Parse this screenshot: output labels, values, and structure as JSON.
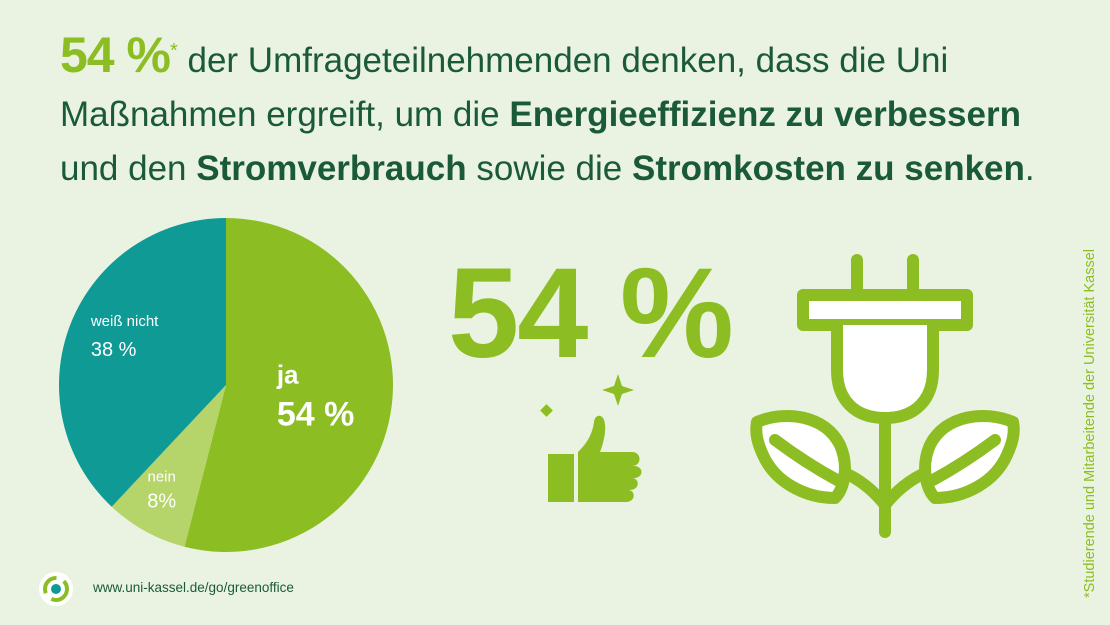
{
  "headline": {
    "stat": "54 %",
    "asterisk": "*",
    "t1": " der Umfrageteilnehmenden denken, dass die Uni Maßnahmen ergreift, um die ",
    "b1": "Energieeffizienz zu verbessern",
    "t2": " und den ",
    "b2": "Stromverbrauch",
    "t3": " sowie die ",
    "b3": "Stromkosten zu senken",
    "t4": "."
  },
  "chart_data": {
    "type": "pie",
    "slices": [
      {
        "label": "ja",
        "value_label": "54 %",
        "value": 54,
        "color": "#8cbe23"
      },
      {
        "label": "nein",
        "value_label": "8%",
        "value": 8,
        "color": "#b5d46a"
      },
      {
        "label": "weiß nicht",
        "value_label": "38 %",
        "value": 38,
        "color": "#0f9a95"
      }
    ]
  },
  "big_percent": "54 %",
  "icons": [
    "thumbs-up-icon",
    "sparkle-icon",
    "plug-plant-icon"
  ],
  "footnote": "*Studierende und Mitarbeitende der Universität Kassel",
  "url": "www.uni-kassel.de/go/greenoffice",
  "colors": {
    "background": "#eaf3e2",
    "green": "#8cbe23",
    "dark_green": "#1a5a3a",
    "teal": "#0f9a95",
    "light_green": "#b5d46a"
  }
}
